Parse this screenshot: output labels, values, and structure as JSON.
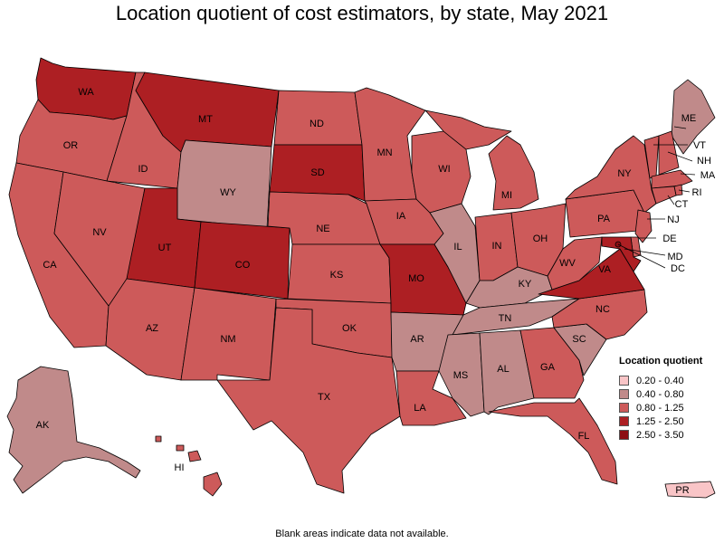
{
  "title": "Location quotient of cost estimators, by state, May 2021",
  "footnote": "Blank areas indicate data not available.",
  "colors": {
    "c1": "#f9c5c7",
    "c2": "#c08a8a",
    "c3": "#cd5a5a",
    "c4": "#ad1f23",
    "c5": "#8c0e13"
  },
  "legend": {
    "title": "Location quotient",
    "items": [
      {
        "label": "0.20 - 0.40",
        "color": "#f9c5c7"
      },
      {
        "label": "0.40 - 0.80",
        "color": "#c08a8a"
      },
      {
        "label": "0.80 - 1.25",
        "color": "#cd5a5a"
      },
      {
        "label": "1.25 - 2.50",
        "color": "#ad1f23"
      },
      {
        "label": "2.50 - 3.50",
        "color": "#8c0e13"
      }
    ]
  },
  "states": [
    {
      "abbr": "WA",
      "cls": "c4"
    },
    {
      "abbr": "OR",
      "cls": "c3"
    },
    {
      "abbr": "CA",
      "cls": "c3"
    },
    {
      "abbr": "ID",
      "cls": "c3"
    },
    {
      "abbr": "NV",
      "cls": "c3"
    },
    {
      "abbr": "MT",
      "cls": "c4"
    },
    {
      "abbr": "WY",
      "cls": "c2"
    },
    {
      "abbr": "UT",
      "cls": "c4"
    },
    {
      "abbr": "AZ",
      "cls": "c3"
    },
    {
      "abbr": "CO",
      "cls": "c4"
    },
    {
      "abbr": "NM",
      "cls": "c3"
    },
    {
      "abbr": "ND",
      "cls": "c3"
    },
    {
      "abbr": "SD",
      "cls": "c4"
    },
    {
      "abbr": "NE",
      "cls": "c3"
    },
    {
      "abbr": "KS",
      "cls": "c3"
    },
    {
      "abbr": "OK",
      "cls": "c3"
    },
    {
      "abbr": "TX",
      "cls": "c3"
    },
    {
      "abbr": "MN",
      "cls": "c3"
    },
    {
      "abbr": "IA",
      "cls": "c3"
    },
    {
      "abbr": "MO",
      "cls": "c4"
    },
    {
      "abbr": "AR",
      "cls": "c2"
    },
    {
      "abbr": "LA",
      "cls": "c3"
    },
    {
      "abbr": "WI",
      "cls": "c3"
    },
    {
      "abbr": "IL",
      "cls": "c2"
    },
    {
      "abbr": "MI",
      "cls": "c3"
    },
    {
      "abbr": "IN",
      "cls": "c3"
    },
    {
      "abbr": "OH",
      "cls": "c3"
    },
    {
      "abbr": "KY",
      "cls": "c2"
    },
    {
      "abbr": "TN",
      "cls": "c2"
    },
    {
      "abbr": "MS",
      "cls": "c2"
    },
    {
      "abbr": "AL",
      "cls": "c2"
    },
    {
      "abbr": "GA",
      "cls": "c3"
    },
    {
      "abbr": "FL",
      "cls": "c3"
    },
    {
      "abbr": "SC",
      "cls": "c2"
    },
    {
      "abbr": "NC",
      "cls": "c3"
    },
    {
      "abbr": "VA",
      "cls": "c4"
    },
    {
      "abbr": "WV",
      "cls": "c3"
    },
    {
      "abbr": "PA",
      "cls": "c3"
    },
    {
      "abbr": "NY",
      "cls": "c3"
    },
    {
      "abbr": "ME",
      "cls": "c2"
    },
    {
      "abbr": "VT",
      "cls": "c3"
    },
    {
      "abbr": "NH",
      "cls": "c3"
    },
    {
      "abbr": "MA",
      "cls": "c3"
    },
    {
      "abbr": "RI",
      "cls": "c3"
    },
    {
      "abbr": "CT",
      "cls": "c3"
    },
    {
      "abbr": "NJ",
      "cls": "c3"
    },
    {
      "abbr": "DE",
      "cls": "c3"
    },
    {
      "abbr": "MD",
      "cls": "c4"
    },
    {
      "abbr": "DC",
      "cls": "c5"
    },
    {
      "abbr": "AK",
      "cls": "c2"
    },
    {
      "abbr": "HI",
      "cls": "c3"
    },
    {
      "abbr": "PR",
      "cls": "c1"
    }
  ]
}
